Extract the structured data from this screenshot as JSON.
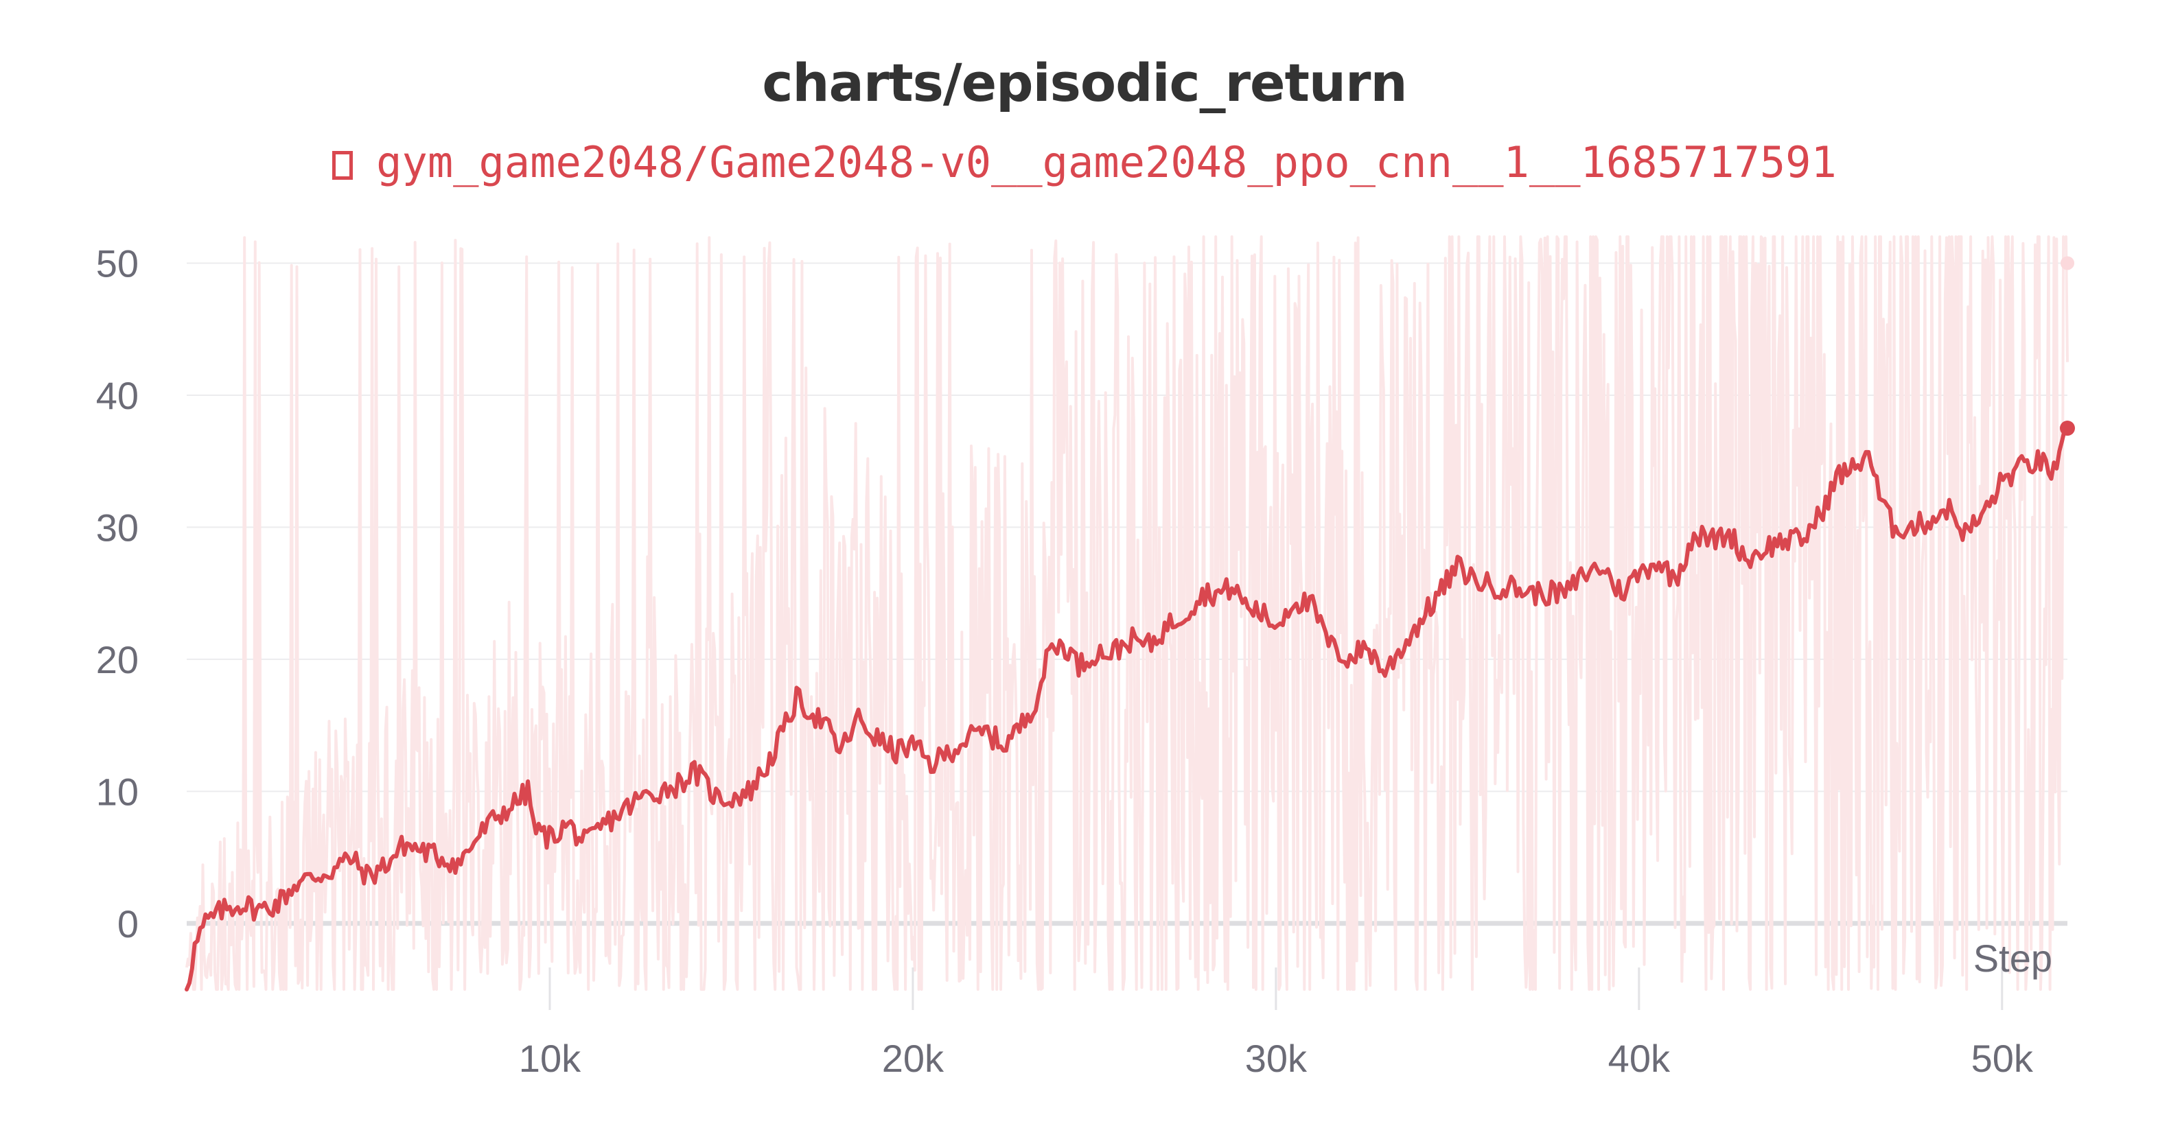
{
  "chart_data": {
    "type": "line",
    "title": "charts/episodic_return",
    "xlabel": "Step",
    "ylabel": "",
    "xlim": [
      0,
      51800
    ],
    "ylim": [
      -5,
      52
    ],
    "x_ticks": [
      10000,
      20000,
      30000,
      40000,
      50000
    ],
    "x_tick_labels": [
      "10k",
      "20k",
      "30k",
      "40k",
      "50k"
    ],
    "y_ticks": [
      0,
      10,
      20,
      30,
      40,
      50
    ],
    "y_tick_labels": [
      "0",
      "10",
      "20",
      "30",
      "40",
      "50"
    ],
    "grid": true,
    "legend_position": "top-center",
    "series": [
      {
        "name": "gym_game2048/Game2048-v0__game2048_ppo_cnn__1__1685717591",
        "color": "#d9474f",
        "raw_color": "#fbe6e7",
        "raw_range": {
          "min": -5,
          "max": 52
        },
        "smoothed": {
          "x": [
            0,
            200,
            500,
            1000,
            1500,
            2000,
            2500,
            3000,
            3500,
            4000,
            4500,
            5000,
            5500,
            6000,
            6500,
            7000,
            7500,
            8000,
            8500,
            9000,
            9400,
            9600,
            10000,
            10500,
            11000,
            11500,
            12000,
            12500,
            13000,
            13500,
            14000,
            14300,
            14600,
            15000,
            15500,
            16000,
            16500,
            16800,
            17200,
            17600,
            18000,
            18500,
            19000,
            19500,
            20000,
            20500,
            21000,
            21500,
            22000,
            22500,
            23000,
            23400,
            23800,
            24200,
            24600,
            25000,
            25500,
            26000,
            26500,
            27000,
            27500,
            28000,
            28500,
            28800,
            29200,
            29600,
            30000,
            30500,
            31000,
            31500,
            32000,
            32500,
            33000,
            33500,
            34000,
            34500,
            35000,
            35500,
            36000,
            36500,
            37000,
            37500,
            38000,
            38500,
            39000,
            39500,
            40000,
            40500,
            41000,
            41500,
            42000,
            42500,
            43000,
            43500,
            44000,
            44500,
            45000,
            45500,
            46000,
            46300,
            46600,
            47000,
            47500,
            48000,
            48500,
            49000,
            49500,
            50000,
            50500,
            51000,
            51500,
            51800
          ],
          "y": [
            -5,
            -2,
            0,
            1,
            1.5,
            1,
            1.5,
            3,
            3.5,
            4,
            5,
            3.5,
            4.5,
            6,
            5.5,
            5,
            4.5,
            6.5,
            8,
            9,
            10,
            7,
            6.5,
            7.5,
            6,
            7.5,
            8.5,
            9.5,
            10,
            10.5,
            11.5,
            10.5,
            9.5,
            9.5,
            10,
            12,
            15,
            17,
            16,
            15,
            13,
            15.5,
            14,
            13,
            13.5,
            12,
            13,
            14,
            14.5,
            13.5,
            15,
            17,
            21,
            21,
            19.5,
            20.5,
            20.5,
            21.5,
            21,
            22.5,
            23.5,
            25,
            25,
            25.5,
            24,
            23.5,
            22.5,
            24.5,
            24,
            21,
            20,
            21,
            19,
            21,
            23,
            25,
            27,
            26,
            25.5,
            25.5,
            25,
            25,
            25,
            26.5,
            27,
            25,
            26.5,
            27.5,
            26,
            29.5,
            29,
            29.5,
            27.5,
            28.5,
            29,
            29,
            31,
            34,
            34.5,
            36,
            32.5,
            30,
            30,
            30.5,
            31.5,
            29.5,
            31,
            33.5,
            34.5,
            35,
            34,
            37.5
          ]
        }
      }
    ]
  }
}
